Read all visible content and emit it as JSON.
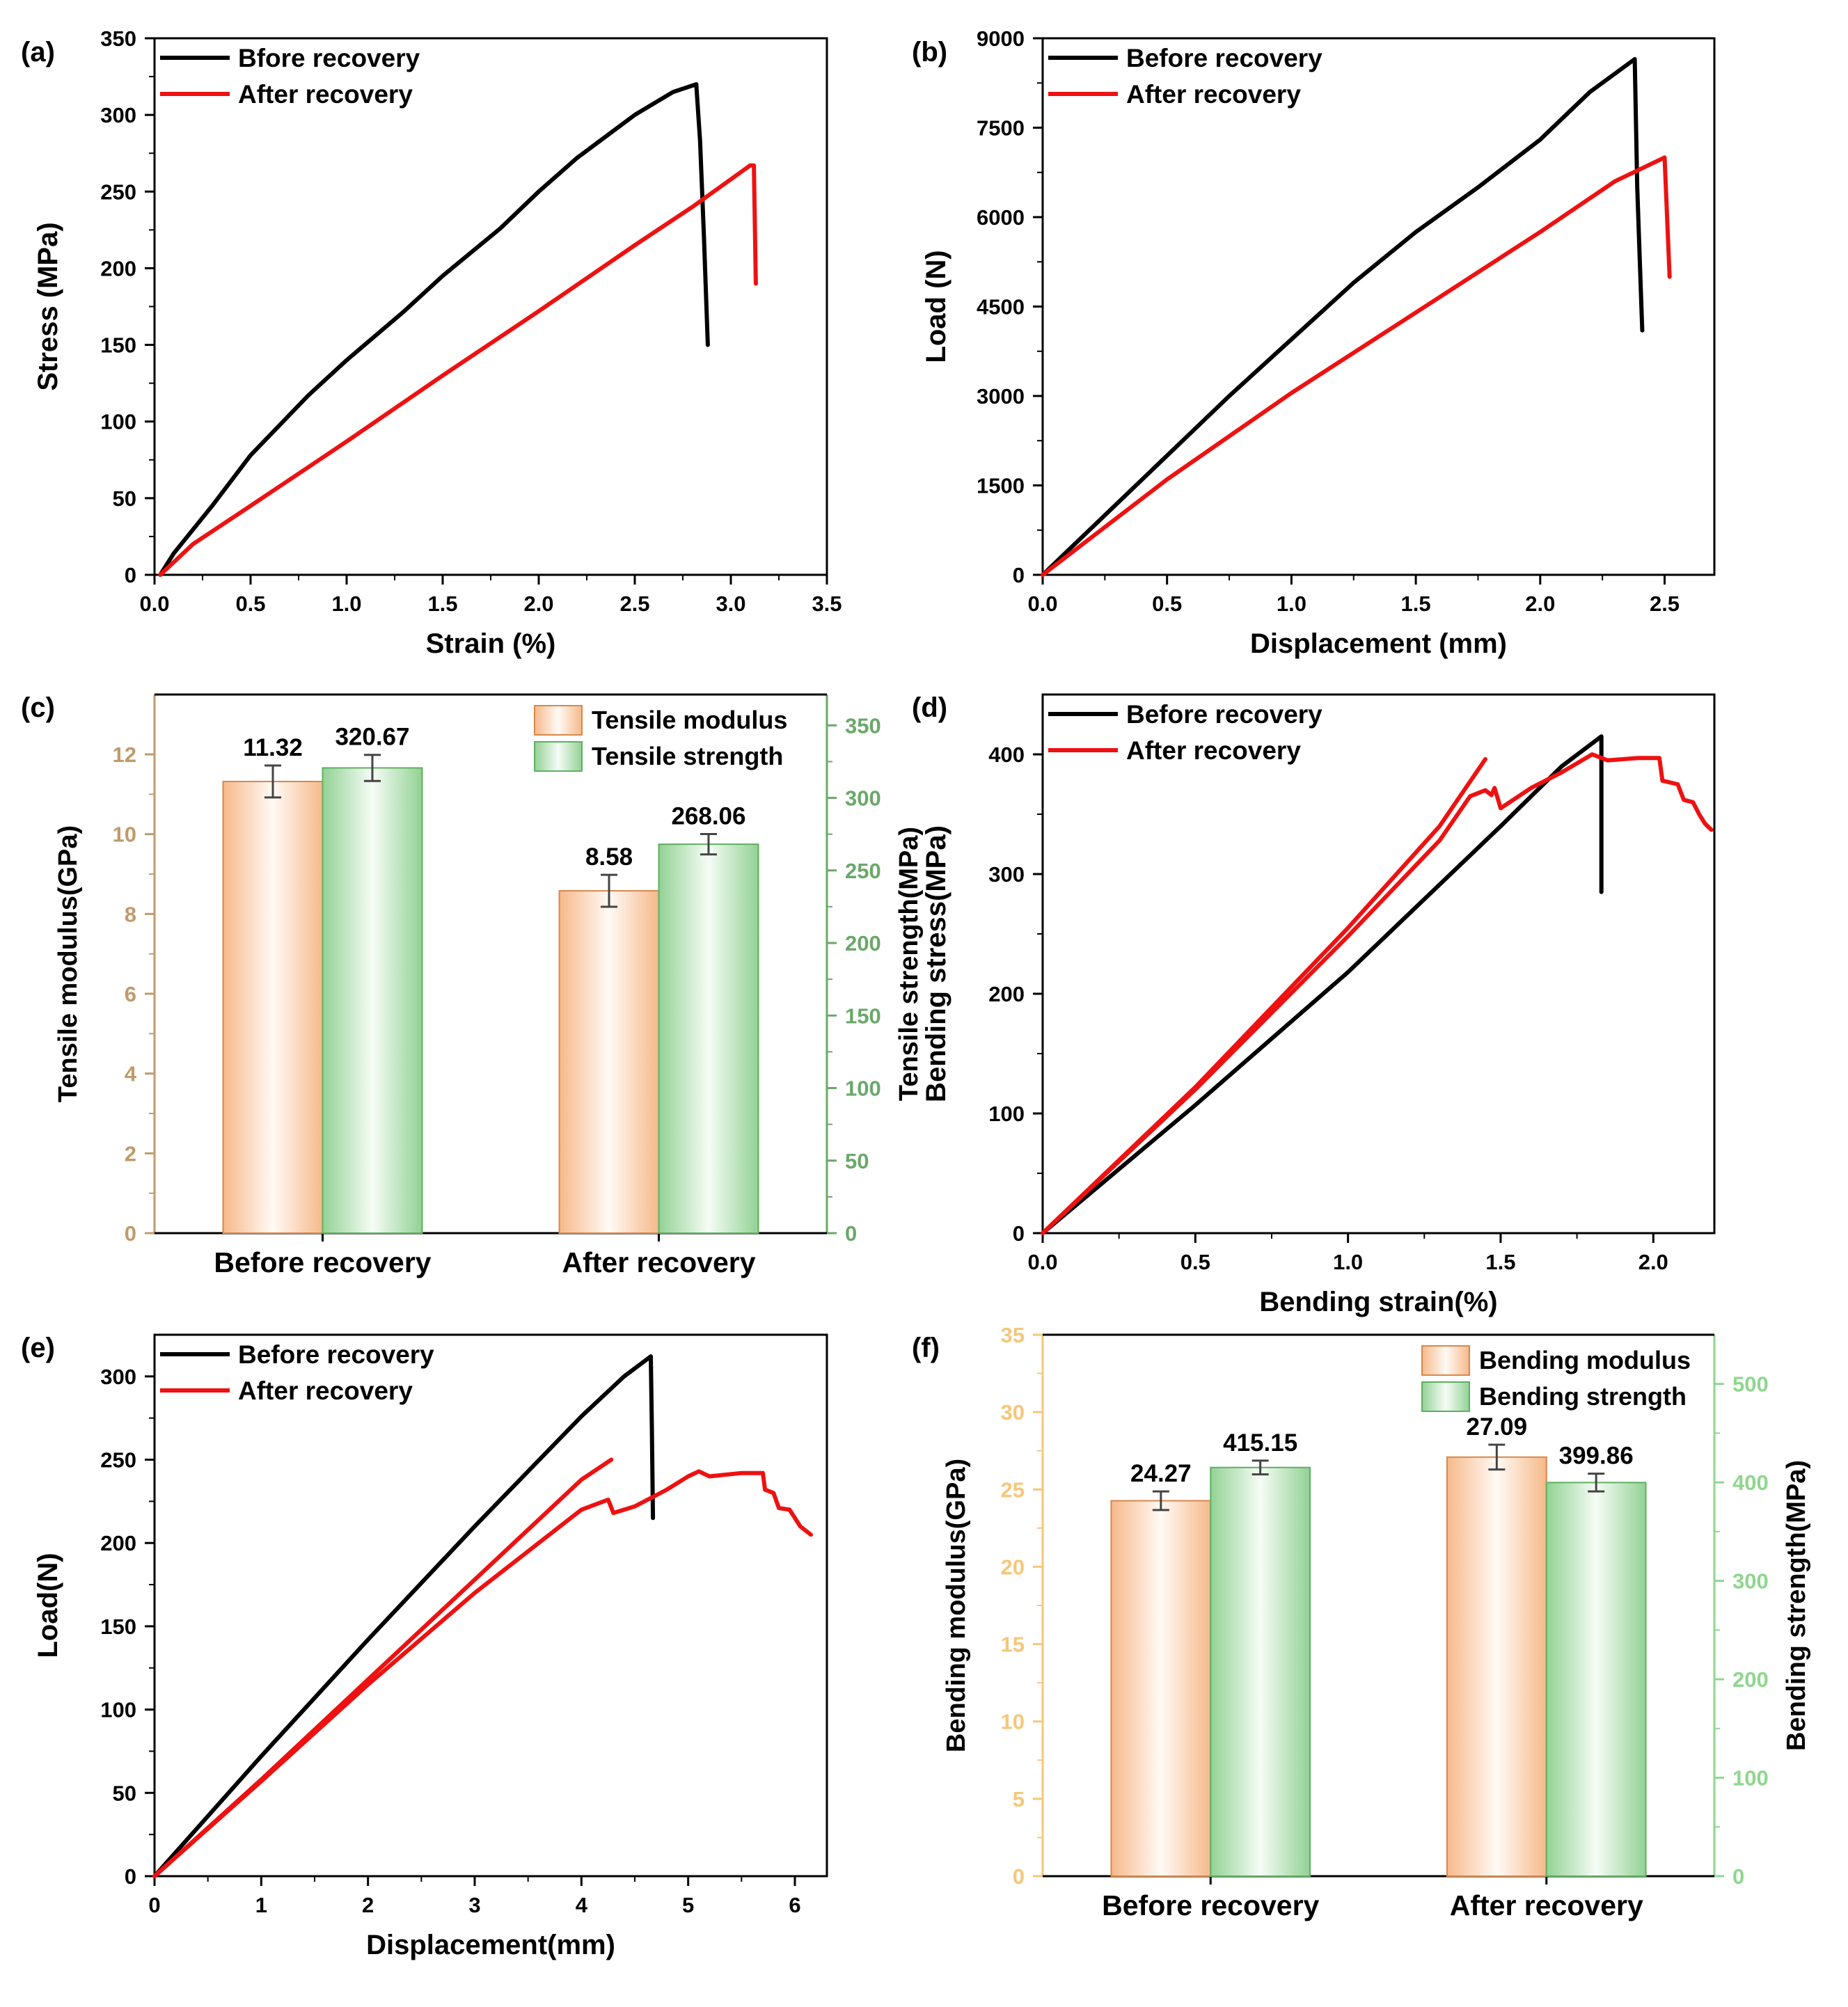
{
  "colors": {
    "black": "#000000",
    "red": "#ee1111",
    "modulus_axis": "#c09a6a",
    "strength_axis": "#6aa86a",
    "orange_axis": "#f5c77a",
    "green_axis": "#8fd68f",
    "bar_orange": "#f6b98a",
    "bar_green": "#92d294"
  },
  "chart_data": [
    {
      "panel": "(a)",
      "type": "line",
      "xlabel": "Strain (%)",
      "ylabel": "Stress (MPa)",
      "xlim": [
        0,
        3.5
      ],
      "ylim": [
        0,
        350
      ],
      "xticks": [
        "0.0",
        "0.5",
        "1.0",
        "1.5",
        "2.0",
        "2.5",
        "3.0",
        "3.5"
      ],
      "yticks": [
        "0",
        "50",
        "100",
        "150",
        "200",
        "250",
        "300",
        "350"
      ],
      "legend": [
        "Bfore recovery",
        "After recovery"
      ],
      "series": [
        {
          "name": "Bfore recovery",
          "color": "black",
          "points": [
            [
              0.03,
              0
            ],
            [
              0.1,
              14
            ],
            [
              0.3,
              45
            ],
            [
              0.5,
              78
            ],
            [
              0.8,
              117
            ],
            [
              1.0,
              140
            ],
            [
              1.3,
              172
            ],
            [
              1.5,
              195
            ],
            [
              1.8,
              226
            ],
            [
              2.0,
              250
            ],
            [
              2.2,
              272
            ],
            [
              2.5,
              300
            ],
            [
              2.7,
              315
            ],
            [
              2.82,
              320
            ],
            [
              2.84,
              283
            ],
            [
              2.86,
              220
            ],
            [
              2.88,
              150
            ]
          ]
        },
        {
          "name": "After recovery",
          "color": "red",
          "points": [
            [
              0.03,
              0
            ],
            [
              0.2,
              20
            ],
            [
              0.5,
              45
            ],
            [
              1.0,
              87
            ],
            [
              1.5,
              130
            ],
            [
              2.0,
              172
            ],
            [
              2.5,
              215
            ],
            [
              2.8,
              240
            ],
            [
              3.0,
              258
            ],
            [
              3.1,
              267
            ],
            [
              3.12,
              267
            ],
            [
              3.13,
              190
            ]
          ]
        }
      ]
    },
    {
      "panel": "(b)",
      "type": "line",
      "xlabel": "Displacement (mm)",
      "ylabel": "Load (N)",
      "xlim": [
        0,
        2.7
      ],
      "ylim": [
        0,
        9000
      ],
      "xticks": [
        "0.0",
        "0.5",
        "1.0",
        "1.5",
        "2.0",
        "2.5"
      ],
      "yticks": [
        "0",
        "1500",
        "3000",
        "4500",
        "6000",
        "7500",
        "9000"
      ],
      "legend": [
        "Before recovery",
        "After recovery"
      ],
      "series": [
        {
          "name": "Before recovery",
          "color": "black",
          "points": [
            [
              0,
              0
            ],
            [
              0.25,
              1000
            ],
            [
              0.5,
              2000
            ],
            [
              0.75,
              3000
            ],
            [
              1.0,
              3950
            ],
            [
              1.25,
              4900
            ],
            [
              1.5,
              5750
            ],
            [
              1.75,
              6500
            ],
            [
              2.0,
              7300
            ],
            [
              2.2,
              8100
            ],
            [
              2.38,
              8650
            ],
            [
              2.39,
              6500
            ],
            [
              2.41,
              4100
            ]
          ]
        },
        {
          "name": "After recovery",
          "color": "red",
          "points": [
            [
              0,
              0
            ],
            [
              0.5,
              1600
            ],
            [
              1.0,
              3050
            ],
            [
              1.5,
              4400
            ],
            [
              2.0,
              5750
            ],
            [
              2.3,
              6600
            ],
            [
              2.5,
              7000
            ],
            [
              2.52,
              5000
            ]
          ]
        }
      ]
    },
    {
      "panel": "(c)",
      "type": "bar",
      "categories": [
        "Before recovery",
        "After recovery"
      ],
      "ylabel_left": "Tensile modulus(GPa)",
      "ylabel_right": "Tensile strength(MPa)",
      "ylim_left": [
        0,
        13.5
      ],
      "ylim_right": [
        0,
        371.25
      ],
      "yticks_left": [
        "0",
        "2",
        "4",
        "6",
        "8",
        "10",
        "12"
      ],
      "yticks_right": [
        "0",
        "50",
        "100",
        "150",
        "200",
        "250",
        "300",
        "350"
      ],
      "legend": [
        "Tensile modulus",
        "Tensile strength"
      ],
      "series": [
        {
          "name": "Tensile modulus",
          "axis": "left",
          "values": [
            11.32,
            8.58
          ],
          "errors": [
            0.4,
            0.4
          ],
          "labels": [
            "11.32",
            "8.58"
          ]
        },
        {
          "name": "Tensile strength",
          "axis": "right",
          "values": [
            320.67,
            268.06
          ],
          "errors": [
            9,
            7
          ],
          "labels": [
            "320.67",
            "268.06"
          ]
        }
      ]
    },
    {
      "panel": "(d)",
      "type": "line",
      "xlabel": "Bending strain(%)",
      "ylabel": "Bending stress(MPa)",
      "xlim": [
        0,
        2.2
      ],
      "ylim": [
        0,
        450
      ],
      "xticks": [
        "0.0",
        "0.5",
        "1.0",
        "1.5",
        "2.0"
      ],
      "yticks": [
        "0",
        "100",
        "200",
        "300",
        "400"
      ],
      "legend": [
        "Before recovery",
        "After recovery"
      ],
      "series": [
        {
          "name": "Before recovery",
          "color": "black",
          "points": [
            [
              0,
              0
            ],
            [
              0.5,
              107
            ],
            [
              1.0,
              218
            ],
            [
              1.5,
              340
            ],
            [
              1.6,
              365
            ],
            [
              1.7,
              390
            ],
            [
              1.83,
              415
            ],
            [
              1.83,
              285
            ]
          ]
        },
        {
          "name": "After recovery",
          "color": "red",
          "points": [
            [
              0,
              0
            ],
            [
              0.5,
              122
            ],
            [
              1.0,
              255
            ],
            [
              1.3,
              340
            ],
            [
              1.45,
              396
            ]
          ]
        },
        {
          "name": "After recovery",
          "color": "red",
          "points": [
            [
              0,
              0
            ],
            [
              0.5,
              120
            ],
            [
              1.0,
              248
            ],
            [
              1.3,
              328
            ],
            [
              1.4,
              365
            ],
            [
              1.45,
              370
            ],
            [
              1.47,
              366
            ],
            [
              1.48,
              372
            ],
            [
              1.5,
              355
            ],
            [
              1.6,
              372
            ],
            [
              1.7,
              385
            ],
            [
              1.8,
              400
            ],
            [
              1.85,
              395
            ],
            [
              1.95,
              397
            ],
            [
              2.02,
              397
            ],
            [
              2.03,
              378
            ],
            [
              2.08,
              375
            ],
            [
              2.1,
              362
            ],
            [
              2.13,
              360
            ],
            [
              2.15,
              350
            ],
            [
              2.17,
              342
            ],
            [
              2.19,
              337
            ]
          ]
        }
      ]
    },
    {
      "panel": "(e)",
      "type": "line",
      "xlabel": "Displacement(mm)",
      "ylabel": "Load(N)",
      "xlim": [
        0,
        6.3
      ],
      "ylim": [
        0,
        325
      ],
      "xticks": [
        "0",
        "1",
        "2",
        "3",
        "4",
        "5",
        "6"
      ],
      "yticks": [
        "0",
        "50",
        "100",
        "150",
        "200",
        "250",
        "300"
      ],
      "legend": [
        "Before recovery",
        "After recovery"
      ],
      "series": [
        {
          "name": "Before recovery",
          "color": "black",
          "points": [
            [
              0,
              0
            ],
            [
              1,
              72
            ],
            [
              2,
              142
            ],
            [
              3,
              210
            ],
            [
              4,
              276
            ],
            [
              4.4,
              300
            ],
            [
              4.65,
              312
            ],
            [
              4.66,
              270
            ],
            [
              4.67,
              215
            ]
          ]
        },
        {
          "name": "After recovery",
          "color": "red",
          "points": [
            [
              0,
              0
            ],
            [
              1,
              58
            ],
            [
              2,
              118
            ],
            [
              3,
              178
            ],
            [
              4,
              238
            ],
            [
              4.28,
              250
            ]
          ]
        },
        {
          "name": "After recovery",
          "color": "red",
          "points": [
            [
              0,
              0
            ],
            [
              1,
              57
            ],
            [
              2,
              115
            ],
            [
              3,
              170
            ],
            [
              4,
              220
            ],
            [
              4.25,
              226
            ],
            [
              4.3,
              218
            ],
            [
              4.5,
              222
            ],
            [
              4.8,
              232
            ],
            [
              5.0,
              240
            ],
            [
              5.1,
              243
            ],
            [
              5.2,
              240
            ],
            [
              5.5,
              242
            ],
            [
              5.7,
              242
            ],
            [
              5.72,
              232
            ],
            [
              5.8,
              230
            ],
            [
              5.85,
              221
            ],
            [
              5.95,
              220
            ],
            [
              6.0,
              215
            ],
            [
              6.05,
              210
            ],
            [
              6.15,
              205
            ]
          ]
        }
      ]
    },
    {
      "panel": "(f)",
      "type": "bar",
      "categories": [
        "Before recovery",
        "After recovery"
      ],
      "ylabel_left": "Bending modulus(GPa)",
      "ylabel_right": "Bending strength(MPa)",
      "ylim_left": [
        0,
        35
      ],
      "ylim_right": [
        0,
        550
      ],
      "yticks_left": [
        "0",
        "5",
        "10",
        "15",
        "20",
        "25",
        "30",
        "35"
      ],
      "yticks_right": [
        "0",
        "100",
        "200",
        "300",
        "400",
        "500"
      ],
      "legend": [
        "Bending modulus",
        "Bending strength"
      ],
      "series": [
        {
          "name": "Bending modulus",
          "axis": "left",
          "values": [
            24.27,
            27.09
          ],
          "errors": [
            0.6,
            0.8
          ],
          "labels": [
            "24.27",
            "27.09"
          ]
        },
        {
          "name": "Bending strength",
          "axis": "right",
          "values": [
            415.15,
            399.86
          ],
          "errors": [
            7,
            9
          ],
          "labels": [
            "415.15",
            "399.86"
          ]
        }
      ]
    }
  ]
}
